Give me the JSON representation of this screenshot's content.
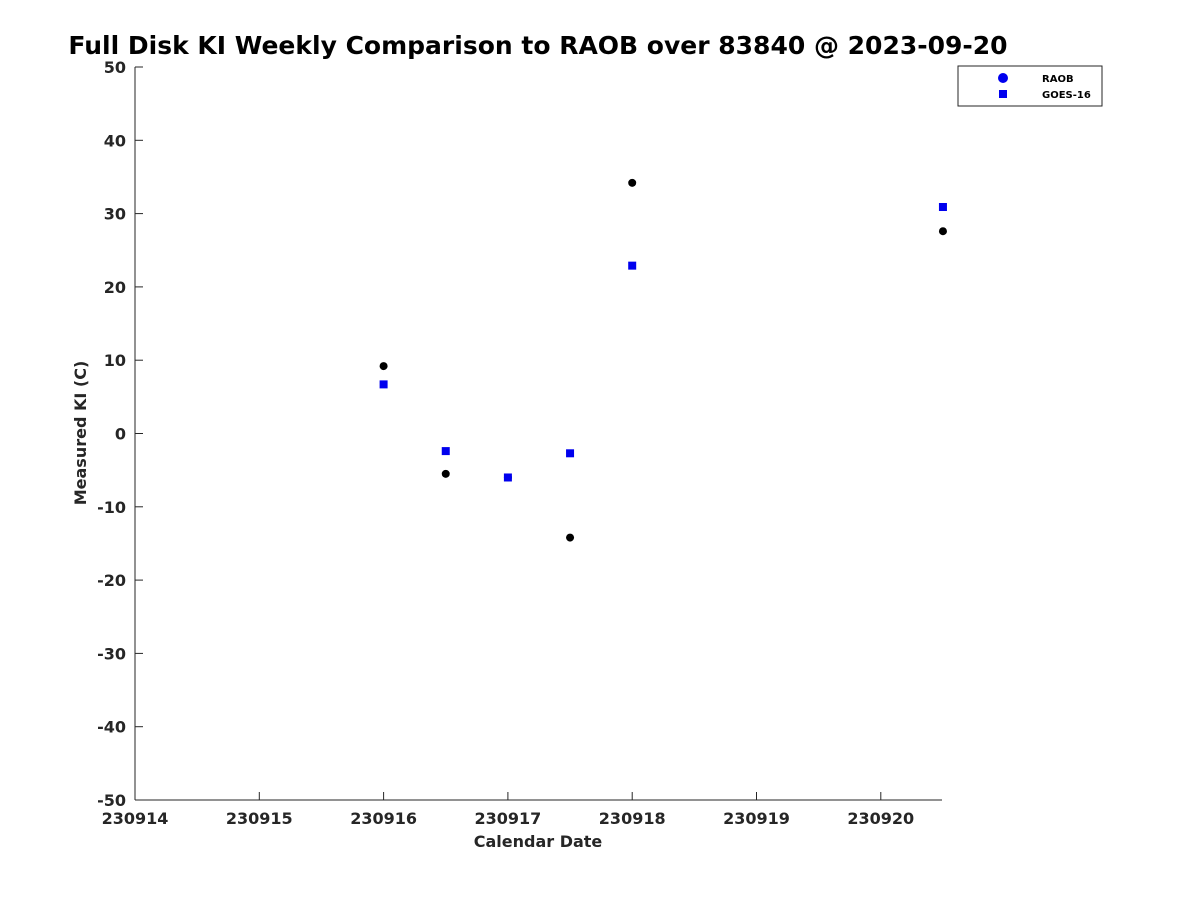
{
  "chart_data": {
    "type": "scatter",
    "title": "Full Disk KI Weekly Comparison to RAOB over 83840 @ 2023-09-20",
    "xlabel": "Calendar Date",
    "ylabel": "Measured KI (C)",
    "xlim": [
      230914,
      230920.5
    ],
    "ylim": [
      -50,
      50
    ],
    "x_ticks": [
      230914,
      230915,
      230916,
      230917,
      230918,
      230919,
      230920
    ],
    "x_tick_labels": [
      "230914",
      "230915",
      "230916",
      "230917",
      "230918",
      "230919",
      "230920"
    ],
    "y_ticks": [
      -50,
      -40,
      -30,
      -20,
      -10,
      0,
      10,
      20,
      30,
      40,
      50
    ],
    "y_tick_labels": [
      "-50",
      "-40",
      "-30",
      "-20",
      "-10",
      "0",
      "10",
      "20",
      "30",
      "40",
      "50"
    ],
    "grid": false,
    "legend_position": "top-right",
    "series": [
      {
        "name": "RAOB",
        "marker": "circle",
        "legend_color": "#0000ee",
        "point_color": "#000000",
        "x": [
          230916,
          230916.5,
          230917,
          230917.5,
          230918,
          230920.5
        ],
        "y": [
          9.2,
          -5.5,
          -6.0,
          -14.2,
          34.2,
          27.6
        ]
      },
      {
        "name": "GOES-16",
        "marker": "square",
        "legend_color": "#0000ee",
        "point_color": "#0000ee",
        "x": [
          230916,
          230916.5,
          230917,
          230917.5,
          230918,
          230920.5
        ],
        "y": [
          6.7,
          -2.4,
          -6.0,
          -2.7,
          22.9,
          30.9
        ]
      }
    ]
  }
}
